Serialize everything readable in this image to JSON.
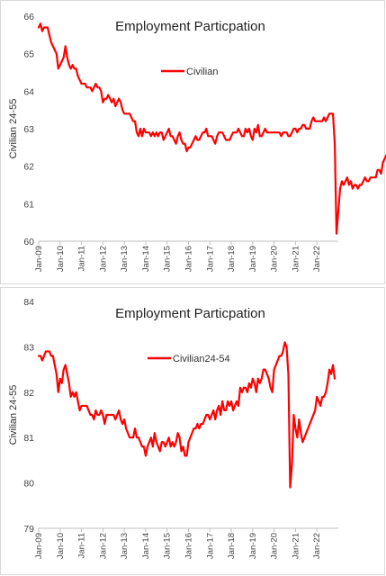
{
  "chart_data": [
    {
      "type": "line",
      "title": "Employment Particpation",
      "xlabel": "",
      "ylabel": "Civilian 24-55",
      "ylim": [
        60,
        66
      ],
      "yticks": [
        "60",
        "61",
        "62",
        "63",
        "64",
        "65",
        "66"
      ],
      "xticks": [
        "Jan-09",
        "Jan-10",
        "Jan-11",
        "Jan-12",
        "Jan-13",
        "Jan-14",
        "Jan-15",
        "Jan-16",
        "Jan-17",
        "Jan-18",
        "Jan-19",
        "Jan-20",
        "Jan-21",
        "Jan-22"
      ],
      "x_start": "2009-01",
      "x_frequency": "monthly",
      "color": "#ff0000",
      "legend_position": "top-center",
      "grid": false,
      "series": [
        {
          "name": "Civilian",
          "values": [
            65.7,
            65.8,
            65.6,
            65.7,
            65.7,
            65.7,
            65.5,
            65.3,
            65.2,
            65.1,
            65.0,
            64.6,
            64.7,
            64.8,
            64.9,
            65.2,
            64.9,
            64.7,
            64.6,
            64.7,
            64.6,
            64.6,
            64.4,
            64.3,
            64.2,
            64.2,
            64.2,
            64.1,
            64.1,
            64.1,
            64.0,
            64.1,
            64.2,
            64.1,
            64.1,
            64.0,
            63.7,
            63.8,
            63.8,
            63.9,
            63.8,
            63.7,
            63.8,
            63.6,
            63.7,
            63.8,
            63.7,
            63.5,
            63.4,
            63.4,
            63.4,
            63.4,
            63.3,
            63.2,
            63.2,
            62.9,
            62.8,
            63.0,
            62.8,
            63.0,
            62.9,
            62.9,
            62.9,
            62.8,
            62.9,
            62.8,
            62.9,
            62.8,
            62.9,
            62.9,
            62.7,
            62.8,
            62.9,
            63.0,
            62.8,
            62.8,
            62.7,
            62.6,
            62.8,
            62.9,
            62.7,
            62.6,
            62.6,
            62.4,
            62.5,
            62.5,
            62.6,
            62.7,
            62.8,
            62.7,
            62.7,
            62.8,
            62.9,
            62.9,
            63.0,
            62.8,
            62.8,
            62.8,
            62.7,
            62.6,
            62.8,
            62.9,
            62.9,
            62.9,
            62.8,
            62.7,
            62.7,
            62.7,
            62.8,
            62.9,
            62.9,
            62.9,
            63.0,
            62.9,
            62.8,
            62.8,
            63.0,
            62.9,
            63.0,
            62.8,
            62.7,
            63.0,
            62.9,
            63.1,
            62.8,
            62.8,
            62.9,
            63.0,
            62.9,
            62.9,
            62.9,
            62.9,
            62.9,
            62.9,
            62.9,
            62.9,
            62.8,
            62.9,
            62.9,
            62.9,
            62.8,
            62.8,
            62.9,
            63.0,
            63.0,
            62.9,
            63.0,
            63.0,
            63.1,
            63.1,
            63.0,
            63.0,
            63.0,
            63.2,
            63.3,
            63.2,
            63.2,
            63.2,
            63.2,
            63.2,
            63.3,
            63.2,
            63.3,
            63.4,
            63.4,
            63.4,
            62.6,
            60.2,
            60.8,
            61.4,
            61.6,
            61.5,
            61.6,
            61.7,
            61.5,
            61.6,
            61.4,
            61.5,
            61.5,
            61.4,
            61.5,
            61.5,
            61.6,
            61.7,
            61.6,
            61.6,
            61.7,
            61.7,
            61.7,
            61.7,
            61.9,
            61.9,
            61.8,
            62.1,
            62.2,
            62.3,
            62.4,
            62.2,
            62.3,
            62.2,
            62.2
          ]
        }
      ]
    },
    {
      "type": "line",
      "title": "Employment Particpation",
      "xlabel": "",
      "ylabel": "Civilian 24-55",
      "ylim": [
        79,
        84
      ],
      "yticks": [
        "79",
        "80",
        "81",
        "82",
        "83",
        "84"
      ],
      "xticks": [
        "Jan-09",
        "Jan-10",
        "Jan-11",
        "Jan-12",
        "Jan-13",
        "Jan-14",
        "Jan-15",
        "Jan-16",
        "Jan-17",
        "Jan-18",
        "Jan-19",
        "Jan-20",
        "Jan-21",
        "Jan-22"
      ],
      "x_start": "2009-01",
      "x_frequency": "monthly",
      "color": "#ff0000",
      "legend_position": "top-center",
      "grid": false,
      "series": [
        {
          "name": "Civilian24-54",
          "values": [
            82.8,
            82.8,
            82.7,
            82.8,
            82.9,
            82.9,
            82.9,
            82.8,
            82.8,
            82.6,
            82.4,
            82.0,
            82.3,
            82.2,
            82.5,
            82.6,
            82.4,
            82.2,
            81.9,
            82.0,
            81.9,
            82.0,
            81.8,
            81.6,
            81.7,
            81.7,
            81.7,
            81.7,
            81.6,
            81.5,
            81.5,
            81.4,
            81.6,
            81.5,
            81.5,
            81.6,
            81.5,
            81.3,
            81.5,
            81.5,
            81.5,
            81.5,
            81.5,
            81.4,
            81.5,
            81.6,
            81.4,
            81.3,
            81.4,
            81.2,
            81.1,
            81.0,
            81.0,
            81.0,
            81.2,
            81.0,
            81.0,
            80.9,
            80.8,
            80.8,
            80.6,
            80.8,
            80.9,
            81.0,
            80.8,
            81.1,
            80.9,
            80.8,
            80.7,
            80.9,
            80.9,
            80.8,
            80.9,
            81.0,
            80.8,
            80.9,
            80.8,
            80.9,
            81.1,
            81.0,
            80.7,
            80.8,
            80.6,
            80.6,
            80.9,
            81.0,
            81.1,
            81.2,
            81.2,
            81.3,
            81.2,
            81.3,
            81.3,
            81.4,
            81.5,
            81.5,
            81.4,
            81.5,
            81.6,
            81.4,
            81.6,
            81.7,
            81.5,
            81.8,
            81.6,
            81.6,
            81.8,
            81.7,
            81.8,
            81.6,
            81.7,
            81.8,
            81.7,
            82.1,
            82.0,
            82.1,
            82.1,
            82.0,
            82.2,
            82.1,
            82.3,
            82.2,
            82.0,
            82.3,
            82.2,
            82.3,
            82.5,
            82.5,
            82.4,
            82.3,
            82.1,
            82.0,
            82.5,
            82.6,
            82.7,
            82.8,
            82.8,
            82.9,
            83.1,
            83.0,
            82.4,
            79.9,
            80.4,
            81.5,
            81.2,
            81.0,
            81.4,
            81.1,
            80.9,
            81.0,
            81.1,
            81.2,
            81.3,
            81.4,
            81.5,
            81.6,
            81.9,
            81.8,
            81.7,
            81.9,
            81.9,
            82.0,
            82.2,
            82.5,
            82.4,
            82.6,
            82.3
          ]
        }
      ]
    }
  ]
}
